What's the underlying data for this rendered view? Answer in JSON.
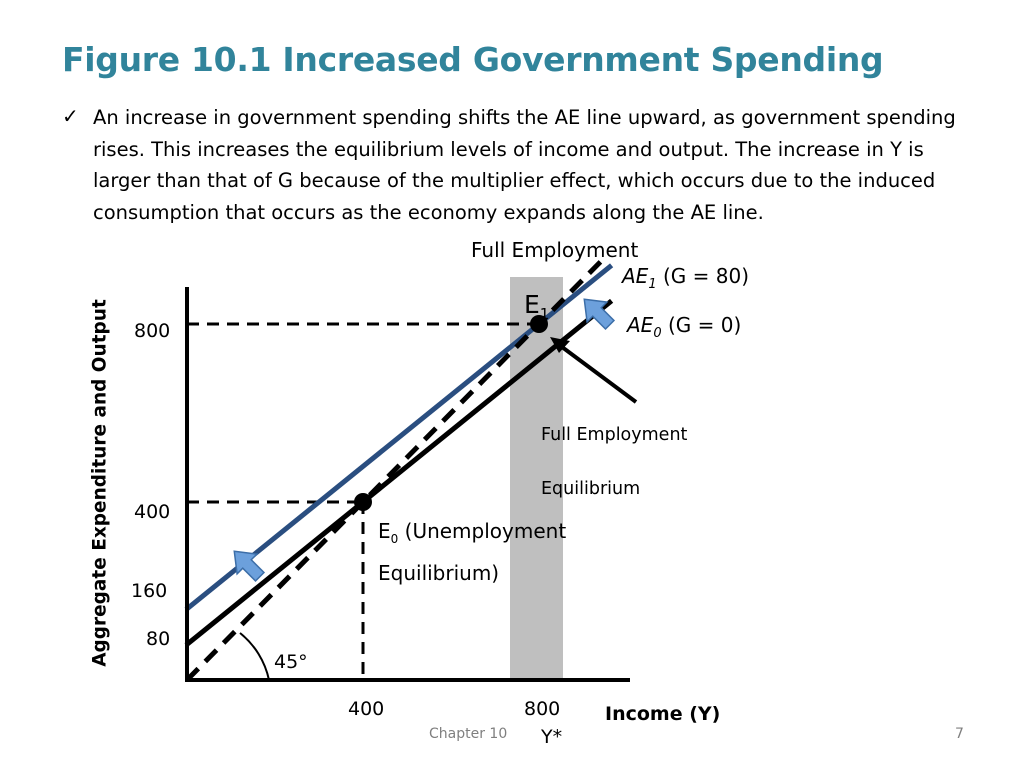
{
  "slide": {
    "title": "Figure 10.1 Increased Government Spending",
    "bullet_icon": "checkmark-icon",
    "bullet_text": "An increase in government spending shifts the AE line upward, as government spending rises. This increases the equilibrium levels of income and output. The increase in Y is larger than that of G because of the multiplier effect, which occurs due to the induced consumption that occurs as the economy expands along the AE line.",
    "footer_center": "Chapter 10",
    "page_number": "7"
  },
  "chart_data": {
    "type": "line",
    "xlabel": "Income (Y)",
    "ylabel": "Aggregate Expenditure and Output",
    "x_ticks": [
      "400",
      "800"
    ],
    "x_tick_sub": "Y*",
    "y_ticks": [
      "80",
      "160",
      "400",
      "800"
    ],
    "xlim": [
      0,
      1000
    ],
    "ylim": [
      0,
      880
    ],
    "series": [
      {
        "name": "AE1",
        "label_main": "AE",
        "label_sub": "1",
        "label_rest": " (G = 80)",
        "intercept": 160,
        "slope": 0.8,
        "color": "#2a4e80"
      },
      {
        "name": "AE0",
        "label_main": "AE",
        "label_sub": "0",
        "label_rest": " (G = 0)",
        "intercept": 80,
        "slope": 0.8,
        "color": "#000000"
      },
      {
        "name": "45-degree line",
        "intercept": 0,
        "slope": 1,
        "color": "#000000",
        "dashed": true
      }
    ],
    "angle_label": "45°",
    "full_employment": {
      "label": "Full Employment",
      "x": 800,
      "color": "#bfbfbf"
    },
    "points": [
      {
        "name": "E0",
        "x": 400,
        "y": 400,
        "label_main": "E",
        "label_sub": "0",
        "label_rest": " (Unemployment",
        "label_line2": "Equilibrium)"
      },
      {
        "name": "E1",
        "x": 800,
        "y": 800,
        "label_main": "E",
        "label_sub": "1"
      }
    ],
    "annotation": {
      "line1": "Full Employment",
      "line2": "Equilibrium"
    },
    "arrow_color": "#6ca0dc",
    "grid": false,
    "legend": "none"
  }
}
